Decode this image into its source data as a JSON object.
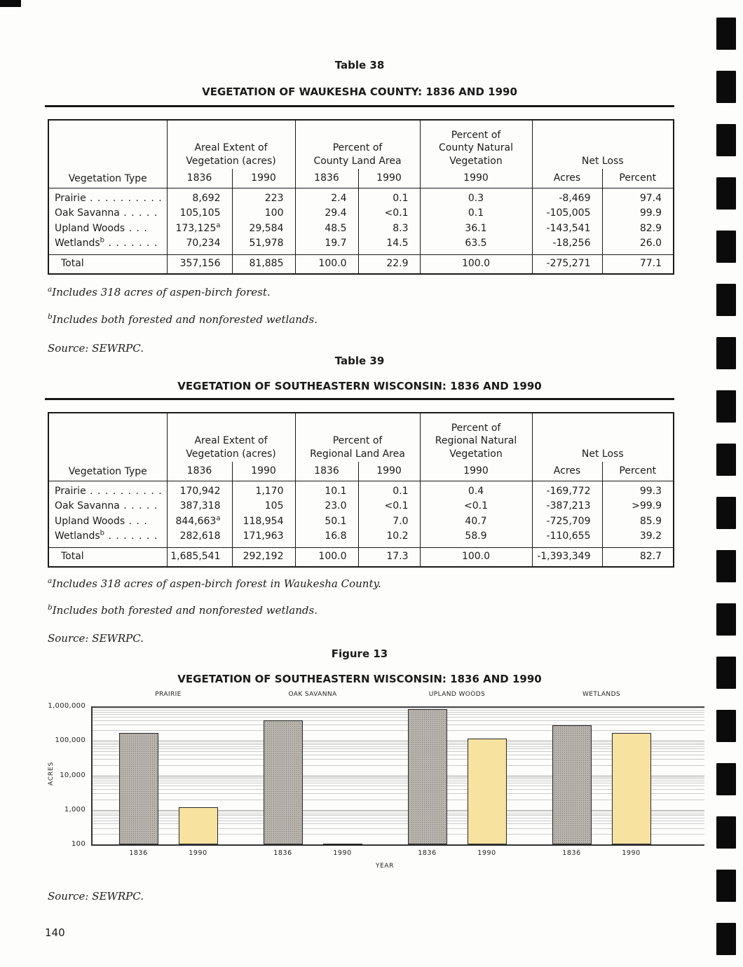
{
  "page": {
    "number": "140"
  },
  "table38": {
    "caption": "Table 38",
    "title": "VEGETATION OF WAUKESHA COUNTY: 1836 AND 1990",
    "col_vegetation_type": "Vegetation Type",
    "group_areal": "Areal Extent of\nVegetation (acres)",
    "group_pct_land": "Percent of\nCounty Land Area",
    "group_pct_natural": "Percent of\nCounty Natural\nVegetation",
    "group_net_loss": "Net Loss",
    "sub_headers": [
      "1836",
      "1990",
      "1836",
      "1990",
      "1990",
      "Acres",
      "Percent"
    ],
    "rows": [
      {
        "name": "Prairie",
        "sup": "",
        "dots": ". . . . . . . . . . .",
        "values": [
          "8,692",
          "223",
          "2.4",
          "0.1",
          "0.3",
          "-8,469",
          "97.4"
        ]
      },
      {
        "name": "Oak Savanna",
        "sup": "",
        "dots": ". . . . .",
        "values": [
          "105,105",
          "100",
          "29.4",
          "<0.1",
          "0.1",
          "-105,005",
          "99.9"
        ]
      },
      {
        "name": "Upland Woods",
        "sup": "",
        "dots": ". . .",
        "values": [
          {
            "t": "173,125",
            "sup": "a"
          },
          "29,584",
          "48.5",
          "8.3",
          "36.1",
          "-143,541",
          "82.9"
        ]
      },
      {
        "name": "Wetlands",
        "sup": "b",
        "dots": ". . . . . . .",
        "values": [
          "70,234",
          "51,978",
          "19.7",
          "14.5",
          "63.5",
          "-18,256",
          "26.0"
        ]
      }
    ],
    "total": {
      "name": "Total",
      "sup": "",
      "dots": "",
      "values": [
        "357,156",
        "81,885",
        "100.0",
        "22.9",
        "100.0",
        "-275,271",
        "77.1"
      ]
    },
    "footnotes": [
      {
        "sup": "a",
        "text": "Includes 318 acres of aspen-birch forest."
      },
      {
        "sup": "b",
        "text": "Includes both forested and nonforested wetlands."
      }
    ],
    "source": "Source: SEWRPC."
  },
  "table39": {
    "caption": "Table 39",
    "title": "VEGETATION OF SOUTHEASTERN WISCONSIN: 1836 AND 1990",
    "col_vegetation_type": "Vegetation Type",
    "group_areal": "Areal Extent of\nVegetation (acres)",
    "group_pct_land": "Percent of\nRegional Land Area",
    "group_pct_natural": "Percent of\nRegional Natural\nVegetation",
    "group_net_loss": "Net Loss",
    "sub_headers": [
      "1836",
      "1990",
      "1836",
      "1990",
      "1990",
      "Acres",
      "Percent"
    ],
    "rows": [
      {
        "name": "Prairie",
        "sup": "",
        "dots": ". . . . . . . . . . .",
        "values": [
          "170,942",
          "1,170",
          "10.1",
          "0.1",
          "0.4",
          "-169,772",
          "99.3"
        ]
      },
      {
        "name": "Oak Savanna",
        "sup": "",
        "dots": ". . . . .",
        "values": [
          "387,318",
          "105",
          "23.0",
          "<0.1",
          "<0.1",
          "-387,213",
          ">99.9"
        ]
      },
      {
        "name": "Upland Woods",
        "sup": "",
        "dots": ". . .",
        "values": [
          {
            "t": "844,663",
            "sup": "a"
          },
          "118,954",
          "50.1",
          "7.0",
          "40.7",
          "-725,709",
          "85.9"
        ]
      },
      {
        "name": "Wetlands",
        "sup": "b",
        "dots": ". . . . . . .",
        "values": [
          "282,618",
          "171,963",
          "16.8",
          "10.2",
          "58.9",
          "-110,655",
          "39.2"
        ]
      }
    ],
    "total": {
      "name": "Total",
      "sup": "",
      "dots": "",
      "values": [
        "1,685,541",
        "292,192",
        "100.0",
        "17.3",
        "100.0",
        "-1,393,349",
        "82.7"
      ]
    },
    "footnotes": [
      {
        "sup": "a",
        "text": "Includes 318 acres of aspen-birch forest in Waukesha County."
      },
      {
        "sup": "b",
        "text": "Includes both forested and nonforested wetlands."
      }
    ],
    "source": "Source: SEWRPC."
  },
  "figure": {
    "caption": "Figure 13",
    "title": "VEGETATION OF SOUTHEASTERN WISCONSIN: 1836 AND 1990",
    "source": "Source: SEWRPC."
  },
  "chart_data": {
    "type": "bar",
    "title": "VEGETATION OF SOUTHEASTERN WISCONSIN: 1836 AND 1990",
    "categories": [
      "PRAIRIE",
      "OAK SAVANNA",
      "UPLAND WOODS",
      "WETLANDS"
    ],
    "series": [
      {
        "name": "1836",
        "values": [
          170942,
          387318,
          844663,
          282618
        ],
        "color": "#b9b3ad"
      },
      {
        "name": "1990",
        "values": [
          1170,
          105,
          118954,
          171963
        ],
        "color": "#f8e2a0"
      }
    ],
    "xlabel": "YEAR",
    "ylabel": "ACRES",
    "yscale": "log",
    "ylim": [
      100,
      1000000
    ],
    "yticks": [
      {
        "label": "100",
        "value": 100
      },
      {
        "label": "1,000",
        "value": 1000
      },
      {
        "label": "10,000",
        "value": 10000
      },
      {
        "label": "100,000",
        "value": 100000
      },
      {
        "label": "1,000,000",
        "value": 1000000
      }
    ],
    "grid": "log-horizontal",
    "legend": "none"
  }
}
